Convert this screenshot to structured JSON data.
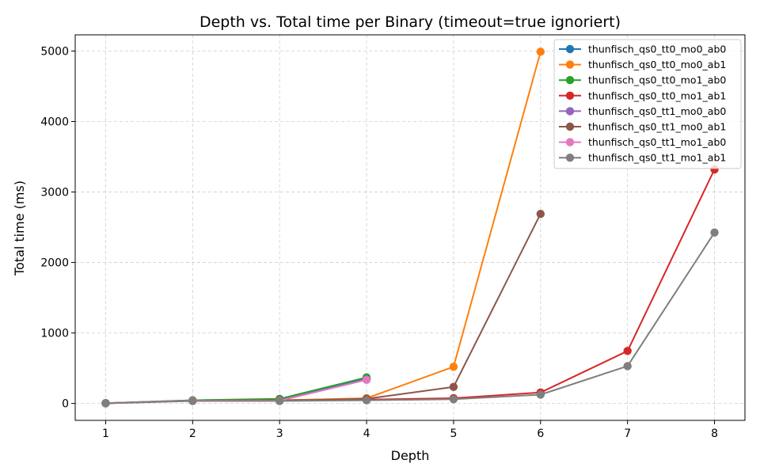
{
  "chart_data": {
    "type": "line",
    "title": "Depth vs. Total time per Binary (timeout=true ignoriert)",
    "xlabel": "Depth",
    "ylabel": "Total time (ms)",
    "xlim": [
      0.65,
      8.35
    ],
    "ylim": [
      -240,
      5230
    ],
    "xticks": [
      1,
      2,
      3,
      4,
      5,
      6,
      7,
      8
    ],
    "yticks": [
      0,
      1000,
      2000,
      3000,
      4000,
      5000
    ],
    "grid": true,
    "legend_position": "top-right",
    "series": [
      {
        "name": "thunfisch_qs0_tt0_mo0_ab0",
        "color": "#1f77b4",
        "x": [
          1,
          2,
          3,
          4
        ],
        "y": [
          5,
          45,
          60,
          360
        ]
      },
      {
        "name": "thunfisch_qs0_tt0_mo0_ab1",
        "color": "#ff7f0e",
        "x": [
          1,
          2,
          3,
          4,
          5,
          6
        ],
        "y": [
          3,
          40,
          45,
          75,
          520,
          4990
        ]
      },
      {
        "name": "thunfisch_qs0_tt0_mo1_ab0",
        "color": "#2ca02c",
        "x": [
          1,
          2,
          3,
          4
        ],
        "y": [
          5,
          45,
          65,
          370
        ]
      },
      {
        "name": "thunfisch_qs0_tt0_mo1_ab1",
        "color": "#d62728",
        "x": [
          1,
          2,
          3,
          4,
          5,
          6,
          7,
          8
        ],
        "y": [
          3,
          40,
          45,
          55,
          75,
          155,
          745,
          3320
        ]
      },
      {
        "name": "thunfisch_qs0_tt1_mo0_ab0",
        "color": "#9467bd",
        "x": [
          1,
          2,
          3,
          4
        ],
        "y": [
          4,
          40,
          40,
          340
        ]
      },
      {
        "name": "thunfisch_qs0_tt1_mo0_ab1",
        "color": "#8c564b",
        "x": [
          1,
          2,
          3,
          4,
          5,
          6
        ],
        "y": [
          3,
          40,
          40,
          65,
          235,
          2690
        ]
      },
      {
        "name": "thunfisch_qs0_tt1_mo1_ab0",
        "color": "#e377c2",
        "x": [
          1,
          2,
          3,
          4
        ],
        "y": [
          4,
          40,
          40,
          335
        ]
      },
      {
        "name": "thunfisch_qs0_tt1_mo1_ab1",
        "color": "#7f7f7f",
        "x": [
          1,
          2,
          3,
          4,
          5,
          6,
          7,
          8
        ],
        "y": [
          2,
          35,
          35,
          45,
          60,
          125,
          530,
          2425
        ]
      }
    ]
  }
}
